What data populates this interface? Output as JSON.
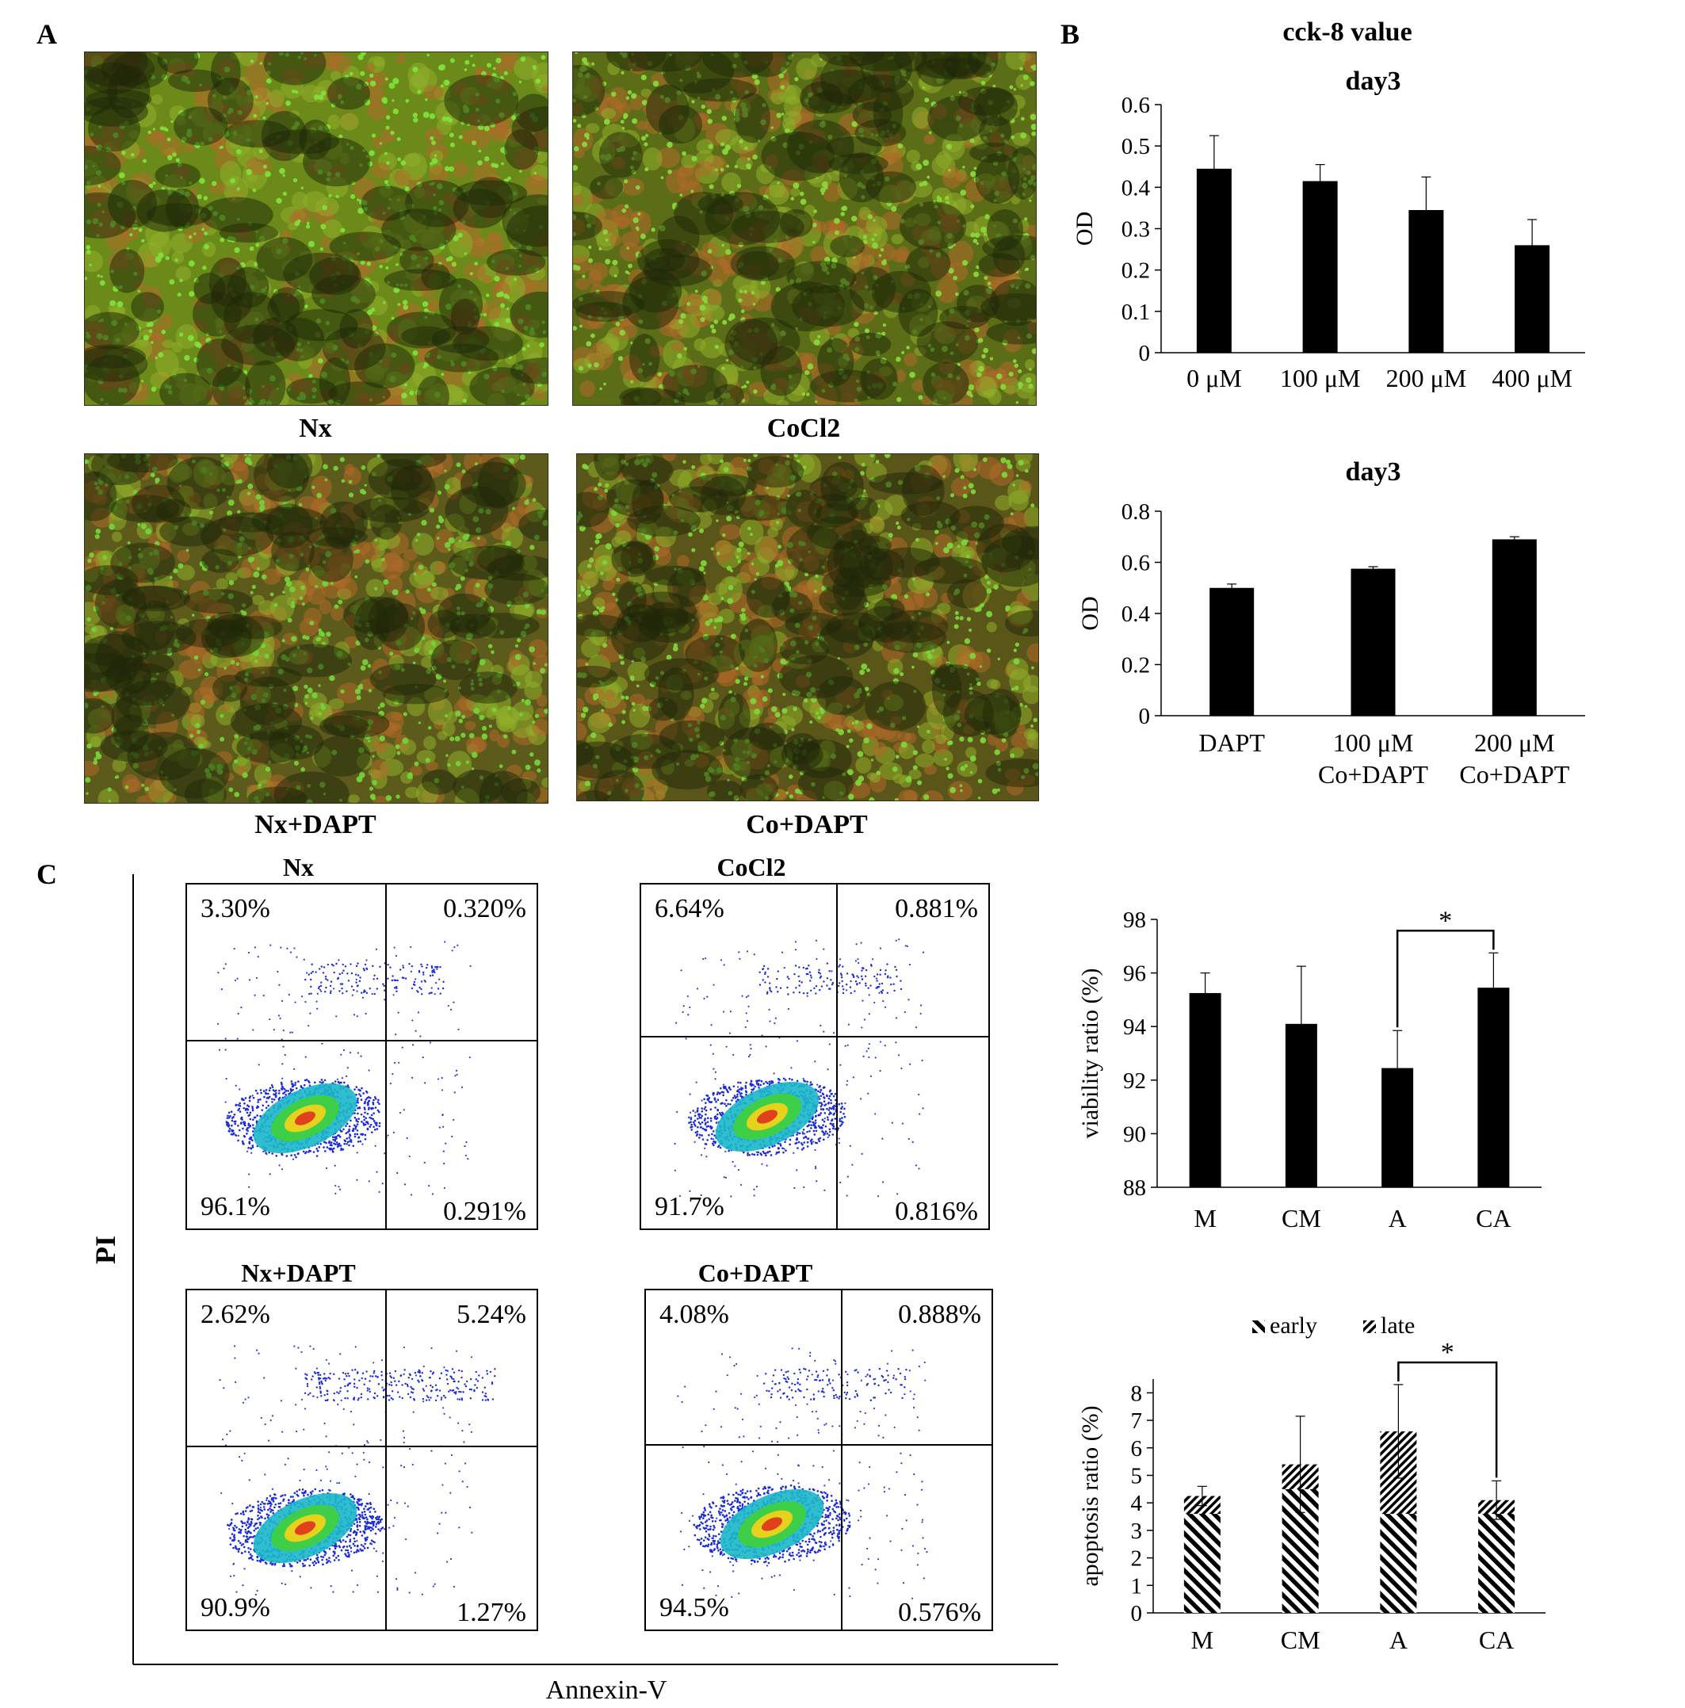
{
  "panel_labels": {
    "a": "A",
    "b": "B",
    "c": "C"
  },
  "micrographs": [
    {
      "label": "Nx",
      "tone": "#6b8a1a",
      "dots": "#7fe03a"
    },
    {
      "label": "CoCl2",
      "tone": "#5b6e17",
      "dots": "#8ad63c"
    },
    {
      "label": "Nx+DAPT",
      "tone": "#5c5b1c",
      "dots": "#74d23a"
    },
    {
      "label": "Co+DAPT",
      "tone": "#5a5518",
      "dots": "#7ed43c"
    }
  ],
  "panel_b": {
    "title": "cck-8 value"
  },
  "flow": {
    "y_label": "PI",
    "x_label": "Annexin-V",
    "plots": [
      {
        "title": "Nx",
        "q_ul": "3.30%",
        "q_ur": "0.320%",
        "q_ll": "96.1%",
        "q_lr": "0.291%"
      },
      {
        "title": "CoCl2",
        "q_ul": "6.64%",
        "q_ur": "0.881%",
        "q_ll": "91.7%",
        "q_lr": "0.816%"
      },
      {
        "title": "Nx+DAPT",
        "q_ul": "2.62%",
        "q_ur": "5.24%",
        "q_ll": "90.9%",
        "q_lr": "1.27%"
      },
      {
        "title": "Co+DAPT",
        "q_ul": "4.08%",
        "q_ur": "0.888%",
        "q_ll": "94.5%",
        "q_lr": "0.576%"
      }
    ]
  },
  "chart_data": [
    {
      "type": "bar",
      "title": "day3",
      "ylabel": "OD",
      "categories": [
        "0 μM",
        "100 μM",
        "200 μM",
        "400 μM"
      ],
      "values": [
        0.445,
        0.415,
        0.345,
        0.26
      ],
      "errors": [
        0.08,
        0.04,
        0.08,
        0.062
      ],
      "ylim": [
        0,
        0.6
      ],
      "yticks": [
        "0",
        "0.1",
        "0.2",
        "0.3",
        "0.4",
        "0.5",
        "0.6"
      ],
      "color": "#000000",
      "grid": false
    },
    {
      "type": "bar",
      "title": "day3",
      "ylabel": "OD",
      "categories": [
        [
          "DAPT"
        ],
        [
          "100 μM",
          "Co+DAPT"
        ],
        [
          "200 μM",
          "Co+DAPT"
        ]
      ],
      "values": [
        0.5,
        0.575,
        0.69
      ],
      "errors": [
        0.015,
        0.008,
        0.01
      ],
      "ylim": [
        0,
        0.8
      ],
      "yticks": [
        "0",
        "0.2",
        "0.4",
        "0.6",
        "0.8"
      ],
      "color": "#000000",
      "grid": false
    },
    {
      "type": "bar",
      "title": "",
      "ylabel": "viability ratio (%)",
      "categories": [
        "M",
        "CM",
        "A",
        "CA"
      ],
      "values": [
        95.25,
        94.1,
        92.45,
        95.45
      ],
      "errors": [
        0.75,
        2.15,
        1.4,
        1.3
      ],
      "ylim": [
        88,
        98
      ],
      "yticks": [
        "88",
        "90",
        "92",
        "94",
        "96",
        "98"
      ],
      "significance": {
        "from": 2,
        "to": 3,
        "mark": "*"
      },
      "color": "#000000",
      "grid": false
    },
    {
      "type": "bar",
      "stacked": true,
      "title": "",
      "ylabel": "apoptosis ratio (%)",
      "categories": [
        "M",
        "CM",
        "A",
        "CA"
      ],
      "series": [
        {
          "name": "early",
          "values": [
            3.6,
            4.5,
            3.6,
            3.6
          ]
        },
        {
          "name": "late",
          "values": [
            0.65,
            0.9,
            3.0,
            0.5
          ]
        }
      ],
      "errors": [
        0.35,
        1.75,
        1.7,
        0.7
      ],
      "ylim": [
        0,
        8.5
      ],
      "yticks": [
        "0",
        "1",
        "2",
        "3",
        "4",
        "5",
        "6",
        "7",
        "8"
      ],
      "legend": "top",
      "significance": {
        "from": 2,
        "to": 3,
        "mark": "*"
      },
      "grid": false
    }
  ]
}
